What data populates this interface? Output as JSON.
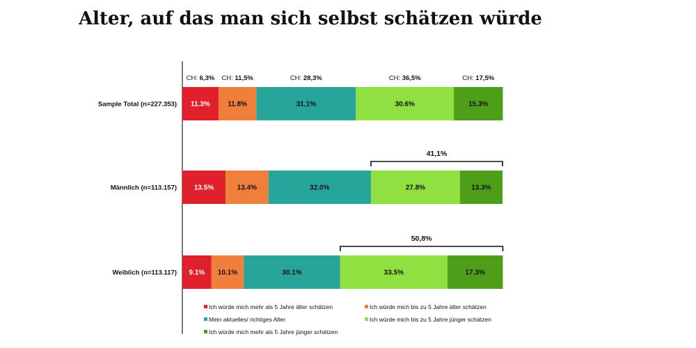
{
  "title": "Alter, auf das man sich selbst schätzen würde",
  "chart_data": {
    "type": "bar",
    "orientation": "horizontal",
    "stacked": true,
    "categories": [
      "Sample Total (n=227.353)",
      "Männlich (n=113.157)",
      "Weiblich (n=113.117)"
    ],
    "series": [
      {
        "name": "Ich würde mich mehr als 5 Jahre älter schätzen",
        "color": "#e0202a",
        "values": [
          11.3,
          13.5,
          9.1
        ],
        "labels": [
          "11.3%",
          "13.5%",
          "9.1%"
        ],
        "label_color": "#ffffff",
        "ch_prefix": "CH: ",
        "ch_value": "6,3%"
      },
      {
        "name": "Ich würde mich bis zu 5 Jahre älter schätzen",
        "color": "#f07f3c",
        "values": [
          11.8,
          13.4,
          10.1
        ],
        "labels": [
          "11.8%",
          "13.4%",
          "10.1%"
        ],
        "label_color": "#111111",
        "ch_prefix": "CH: ",
        "ch_value": "11,5%"
      },
      {
        "name": "Mein aktuelles/ richtiges Alter",
        "color": "#27a59b",
        "values": [
          31.1,
          32.0,
          30.1
        ],
        "labels": [
          "31.1%",
          "32.0%",
          "30.1%"
        ],
        "label_color": "#111111",
        "ch_prefix": "CH: ",
        "ch_value": "28,3%"
      },
      {
        "name": "Ich würde mich bis zu 5 Jahre jünger schätzen",
        "color": "#8fe040",
        "values": [
          30.6,
          27.8,
          33.5
        ],
        "labels": [
          "30.6%",
          "27.8%",
          "33.5%"
        ],
        "label_color": "#111111",
        "ch_prefix": "CH: ",
        "ch_value": "36,5%"
      },
      {
        "name": "Ich würde mich mehr als 5 Jahre jünger schätzen",
        "color": "#4f9e1a",
        "values": [
          15.3,
          13.3,
          17.3
        ],
        "labels": [
          "15.3%",
          "13.3%",
          "17.3%"
        ],
        "label_color": "#111111",
        "ch_prefix": "CH: ",
        "ch_value": "17,5%"
      }
    ],
    "brackets": [
      {
        "category_index": 1,
        "from_series": 3,
        "to_series": 4,
        "label": "41,1%"
      },
      {
        "category_index": 2,
        "from_series": 3,
        "to_series": 4,
        "label": "50,8%"
      }
    ],
    "xlim": [
      0,
      100
    ],
    "legend_position": "bottom",
    "grid": false
  }
}
